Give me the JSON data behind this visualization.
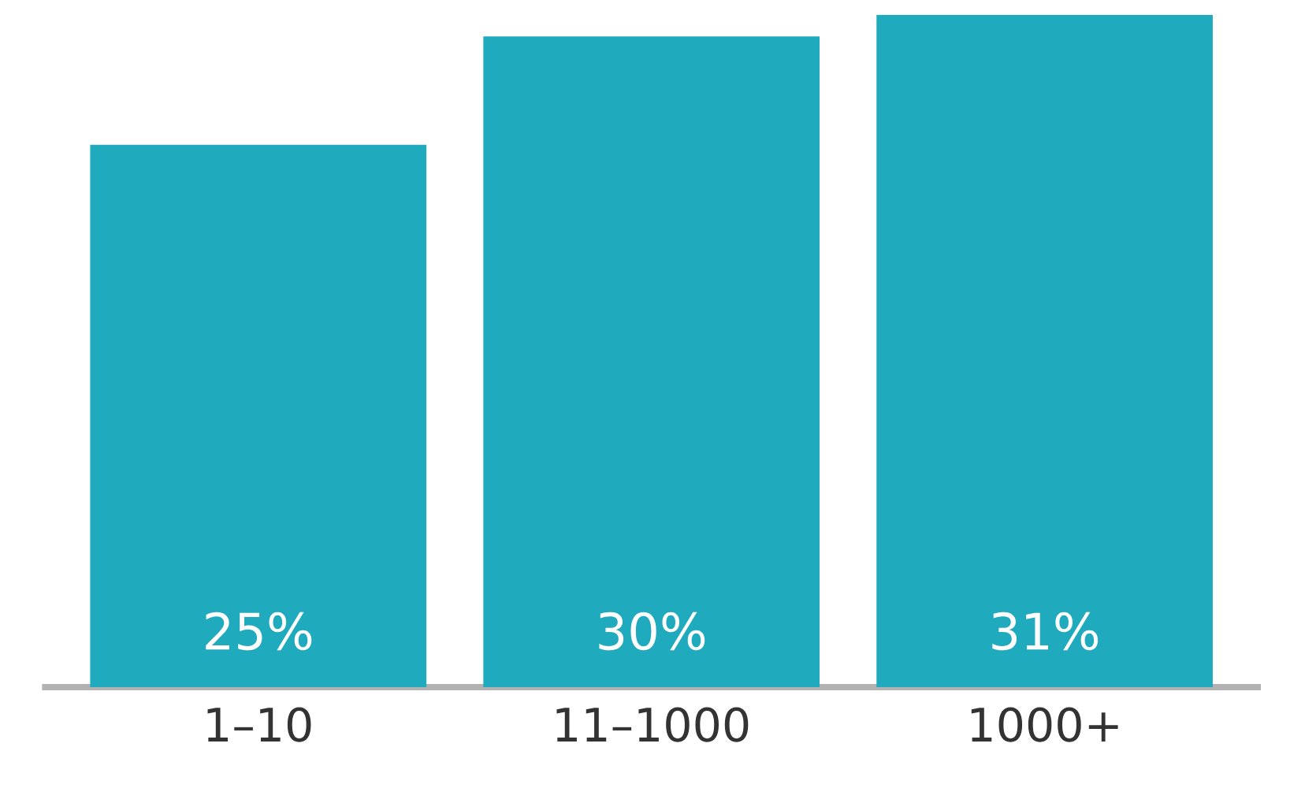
{
  "chart_data": {
    "type": "bar",
    "categories": [
      "1–10",
      "11–1000",
      "1000+"
    ],
    "values": [
      25,
      30,
      31
    ],
    "value_labels": [
      "25%",
      "30%",
      "31%"
    ],
    "color": "#1faabd"
  }
}
